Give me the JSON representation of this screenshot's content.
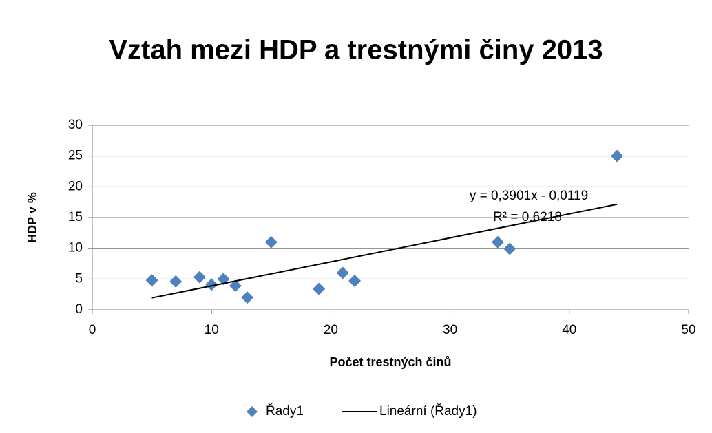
{
  "chart_data": {
    "type": "scatter",
    "title": "Vztah mezi HDP a trestnými činy 2013",
    "xlabel": "Počet trestných činů",
    "ylabel": "HDP v %",
    "xlim": [
      0,
      50
    ],
    "xticks": [
      0,
      10,
      20,
      30,
      40,
      50
    ],
    "ylim": [
      0,
      30
    ],
    "yticks": [
      0,
      5,
      10,
      15,
      20,
      25,
      30
    ],
    "grid": true,
    "legend": "bottom",
    "series": [
      {
        "name": "Řady1",
        "color": "#4f81bd",
        "marker": "diamond",
        "x": [
          5,
          7,
          9,
          10,
          11,
          12,
          13,
          15,
          19,
          21,
          22,
          34,
          35,
          44
        ],
        "values": [
          4.8,
          4.6,
          5.3,
          4.1,
          5.0,
          3.9,
          2.0,
          11.0,
          3.4,
          6.0,
          4.7,
          11.0,
          9.9,
          25.0
        ]
      },
      {
        "name": "Lineární (Řady1)",
        "color": "#000000",
        "marker": "line",
        "x": [
          5,
          44
        ],
        "values": [
          1.94,
          17.15
        ]
      }
    ],
    "annotations": [
      "y = 0,3901x - 0,0119",
      "R² = 0,6218"
    ]
  }
}
